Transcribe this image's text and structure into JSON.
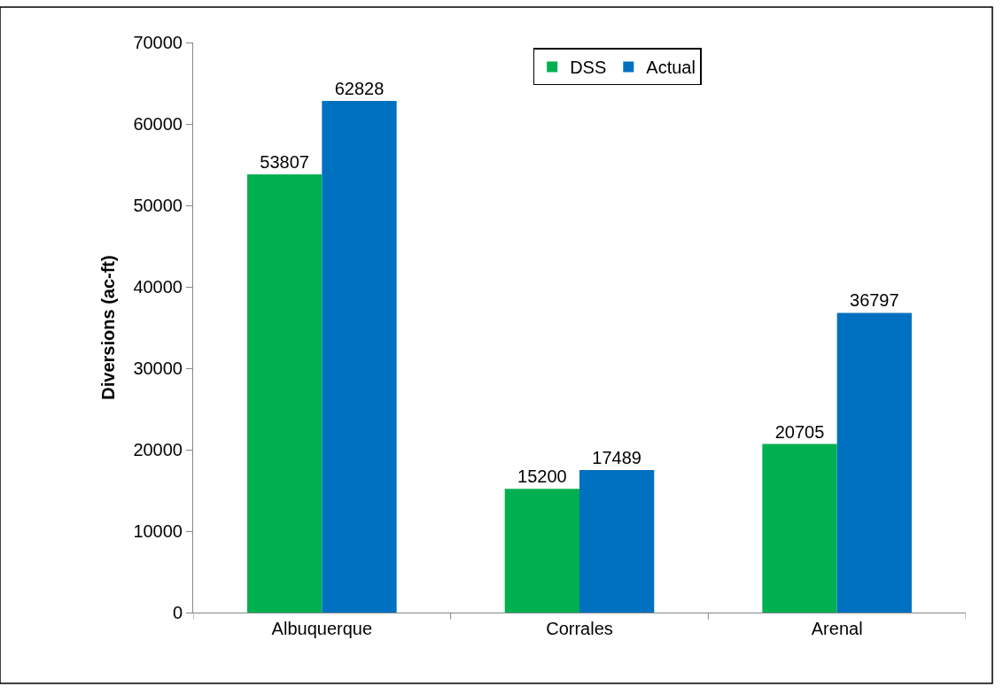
{
  "chart_data": {
    "type": "bar",
    "ylabel": "Diversions (ac-ft)",
    "categories": [
      "Albuquerque",
      "Corrales",
      "Arenal"
    ],
    "series": [
      {
        "name": "DSS",
        "color": "#00b050",
        "values": [
          53807,
          15200,
          20705
        ]
      },
      {
        "name": "Actual",
        "color": "#0070c0",
        "values": [
          62828,
          17489,
          36797
        ]
      }
    ],
    "ylim": [
      0,
      70000
    ],
    "yticks": [
      0,
      10000,
      20000,
      30000,
      40000,
      50000,
      60000,
      70000
    ],
    "data_labels": true,
    "legend": "top right"
  }
}
